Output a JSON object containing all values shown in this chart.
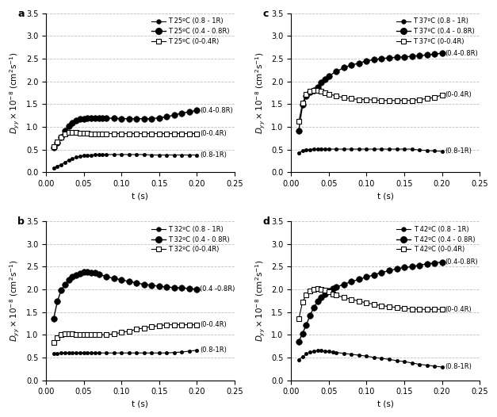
{
  "panels": [
    {
      "label": "a",
      "legend_entries": [
        "T 25ºC (0.8 - 1R)",
        "T 25ºC (0.4 - 0.8R)",
        "T 25ºC (0-0.4R)"
      ],
      "series": {
        "outer": {
          "t": [
            0.01,
            0.015,
            0.02,
            0.025,
            0.03,
            0.035,
            0.04,
            0.045,
            0.05,
            0.055,
            0.06,
            0.065,
            0.07,
            0.075,
            0.08,
            0.09,
            0.1,
            0.11,
            0.12,
            0.13,
            0.14,
            0.15,
            0.16,
            0.17,
            0.18,
            0.19,
            0.2
          ],
          "y": [
            0.1,
            0.13,
            0.17,
            0.22,
            0.27,
            0.3,
            0.33,
            0.35,
            0.37,
            0.38,
            0.38,
            0.39,
            0.39,
            0.39,
            0.39,
            0.39,
            0.39,
            0.39,
            0.39,
            0.39,
            0.38,
            0.38,
            0.38,
            0.38,
            0.38,
            0.38,
            0.38
          ]
        },
        "mid": {
          "t": [
            0.01,
            0.015,
            0.02,
            0.025,
            0.03,
            0.035,
            0.04,
            0.045,
            0.05,
            0.055,
            0.06,
            0.065,
            0.07,
            0.075,
            0.08,
            0.09,
            0.1,
            0.11,
            0.12,
            0.13,
            0.14,
            0.15,
            0.16,
            0.17,
            0.18,
            0.19,
            0.2
          ],
          "y": [
            0.55,
            0.65,
            0.78,
            0.92,
            1.02,
            1.08,
            1.14,
            1.17,
            1.18,
            1.19,
            1.2,
            1.2,
            1.2,
            1.2,
            1.19,
            1.19,
            1.18,
            1.18,
            1.18,
            1.18,
            1.18,
            1.2,
            1.22,
            1.26,
            1.3,
            1.33,
            1.36
          ]
        },
        "inner": {
          "t": [
            0.01,
            0.015,
            0.02,
            0.025,
            0.03,
            0.035,
            0.04,
            0.045,
            0.05,
            0.055,
            0.06,
            0.065,
            0.07,
            0.075,
            0.08,
            0.09,
            0.1,
            0.11,
            0.12,
            0.13,
            0.14,
            0.15,
            0.16,
            0.17,
            0.18,
            0.19,
            0.2
          ],
          "y": [
            0.56,
            0.66,
            0.78,
            0.85,
            0.88,
            0.88,
            0.87,
            0.86,
            0.86,
            0.86,
            0.85,
            0.85,
            0.85,
            0.85,
            0.85,
            0.85,
            0.85,
            0.85,
            0.85,
            0.85,
            0.85,
            0.85,
            0.85,
            0.85,
            0.85,
            0.85,
            0.85
          ]
        },
        "annot_outer": "(0.8-1R)",
        "annot_mid": "(0.4-0.8R)",
        "annot_inner": "(0-0.4R)"
      }
    },
    {
      "label": "b",
      "legend_entries": [
        "T 32ºC (0.8 - 1R)",
        "T 32ºC (0.4 - 0.8R)",
        "T 32ºC (0-0.4R)"
      ],
      "series": {
        "outer": {
          "t": [
            0.01,
            0.015,
            0.02,
            0.025,
            0.03,
            0.035,
            0.04,
            0.045,
            0.05,
            0.055,
            0.06,
            0.065,
            0.07,
            0.08,
            0.09,
            0.1,
            0.11,
            0.12,
            0.13,
            0.14,
            0.15,
            0.16,
            0.17,
            0.18,
            0.19,
            0.2
          ],
          "y": [
            0.58,
            0.59,
            0.6,
            0.6,
            0.6,
            0.6,
            0.6,
            0.6,
            0.6,
            0.6,
            0.6,
            0.6,
            0.6,
            0.6,
            0.6,
            0.6,
            0.6,
            0.6,
            0.6,
            0.6,
            0.6,
            0.6,
            0.61,
            0.62,
            0.64,
            0.66
          ]
        },
        "mid": {
          "t": [
            0.01,
            0.015,
            0.02,
            0.025,
            0.03,
            0.035,
            0.04,
            0.045,
            0.05,
            0.055,
            0.06,
            0.065,
            0.07,
            0.08,
            0.09,
            0.1,
            0.11,
            0.12,
            0.13,
            0.14,
            0.15,
            0.16,
            0.17,
            0.18,
            0.19,
            0.2
          ],
          "y": [
            1.35,
            1.73,
            1.98,
            2.1,
            2.2,
            2.27,
            2.32,
            2.35,
            2.38,
            2.38,
            2.37,
            2.36,
            2.33,
            2.28,
            2.24,
            2.21,
            2.17,
            2.14,
            2.11,
            2.09,
            2.07,
            2.05,
            2.04,
            2.03,
            2.02,
            2.0
          ]
        },
        "inner": {
          "t": [
            0.01,
            0.015,
            0.02,
            0.025,
            0.03,
            0.035,
            0.04,
            0.045,
            0.05,
            0.055,
            0.06,
            0.065,
            0.07,
            0.08,
            0.09,
            0.1,
            0.11,
            0.12,
            0.13,
            0.14,
            0.15,
            0.16,
            0.17,
            0.18,
            0.19,
            0.2
          ],
          "y": [
            0.83,
            0.93,
            1.0,
            1.03,
            1.03,
            1.02,
            1.01,
            1.0,
            1.0,
            1.0,
            1.0,
            1.0,
            1.0,
            1.0,
            1.02,
            1.05,
            1.08,
            1.12,
            1.15,
            1.18,
            1.2,
            1.22,
            1.22,
            1.22,
            1.22,
            1.22
          ]
        },
        "annot_outer": "(0.8-1R)",
        "annot_mid": "(0.4 -0.8R)",
        "annot_inner": "(0-0.4R)"
      }
    },
    {
      "label": "c",
      "legend_entries": [
        "T 37ºC (0.8 - 1R)",
        "T 37ºC (0.4 - 0.8R)",
        "T 37ºC (0-0.4R)"
      ],
      "series": {
        "outer": {
          "t": [
            0.01,
            0.015,
            0.02,
            0.025,
            0.03,
            0.035,
            0.04,
            0.045,
            0.05,
            0.06,
            0.07,
            0.08,
            0.09,
            0.1,
            0.11,
            0.12,
            0.13,
            0.14,
            0.15,
            0.16,
            0.17,
            0.18,
            0.19,
            0.2
          ],
          "y": [
            0.43,
            0.47,
            0.49,
            0.5,
            0.51,
            0.51,
            0.51,
            0.51,
            0.51,
            0.51,
            0.51,
            0.51,
            0.51,
            0.51,
            0.51,
            0.51,
            0.51,
            0.51,
            0.51,
            0.51,
            0.49,
            0.48,
            0.47,
            0.46
          ]
        },
        "mid": {
          "t": [
            0.01,
            0.015,
            0.02,
            0.025,
            0.03,
            0.035,
            0.04,
            0.045,
            0.05,
            0.06,
            0.07,
            0.08,
            0.09,
            0.1,
            0.11,
            0.12,
            0.13,
            0.14,
            0.15,
            0.16,
            0.17,
            0.18,
            0.19,
            0.2
          ],
          "y": [
            0.92,
            1.48,
            1.68,
            1.76,
            1.8,
            1.88,
            1.97,
            2.05,
            2.12,
            2.22,
            2.3,
            2.36,
            2.4,
            2.45,
            2.48,
            2.5,
            2.52,
            2.53,
            2.54,
            2.55,
            2.57,
            2.58,
            2.6,
            2.62
          ]
        },
        "inner": {
          "t": [
            0.01,
            0.015,
            0.02,
            0.025,
            0.03,
            0.035,
            0.04,
            0.045,
            0.05,
            0.06,
            0.07,
            0.08,
            0.09,
            0.1,
            0.11,
            0.12,
            0.13,
            0.14,
            0.15,
            0.16,
            0.17,
            0.18,
            0.19,
            0.2
          ],
          "y": [
            1.12,
            1.52,
            1.72,
            1.78,
            1.8,
            1.8,
            1.78,
            1.75,
            1.72,
            1.68,
            1.64,
            1.62,
            1.6,
            1.6,
            1.59,
            1.58,
            1.58,
            1.58,
            1.58,
            1.58,
            1.6,
            1.62,
            1.65,
            1.7
          ]
        },
        "annot_outer": "(0.8-1R)",
        "annot_mid": "(0.4-0.8R)",
        "annot_inner": "(0-0.4R)"
      }
    },
    {
      "label": "d",
      "legend_entries": [
        "T 42ºC (0.8 - 1R)",
        "T 42ºC (0.4 - 0.8R)",
        "T 42ºC (0-0.4R)"
      ],
      "series": {
        "outer": {
          "t": [
            0.01,
            0.015,
            0.02,
            0.025,
            0.03,
            0.035,
            0.04,
            0.045,
            0.05,
            0.055,
            0.06,
            0.07,
            0.08,
            0.09,
            0.1,
            0.11,
            0.12,
            0.13,
            0.14,
            0.15,
            0.16,
            0.17,
            0.18,
            0.19,
            0.2
          ],
          "y": [
            0.45,
            0.52,
            0.58,
            0.62,
            0.64,
            0.65,
            0.65,
            0.64,
            0.63,
            0.62,
            0.61,
            0.59,
            0.57,
            0.55,
            0.53,
            0.5,
            0.48,
            0.46,
            0.43,
            0.41,
            0.38,
            0.35,
            0.33,
            0.31,
            0.29
          ]
        },
        "mid": {
          "t": [
            0.01,
            0.015,
            0.02,
            0.025,
            0.03,
            0.035,
            0.04,
            0.045,
            0.05,
            0.055,
            0.06,
            0.07,
            0.08,
            0.09,
            0.1,
            0.11,
            0.12,
            0.13,
            0.14,
            0.15,
            0.16,
            0.17,
            0.18,
            0.19,
            0.2
          ],
          "y": [
            0.85,
            1.03,
            1.22,
            1.43,
            1.6,
            1.73,
            1.82,
            1.9,
            1.96,
            2.01,
            2.05,
            2.11,
            2.17,
            2.22,
            2.27,
            2.32,
            2.37,
            2.41,
            2.45,
            2.48,
            2.5,
            2.53,
            2.56,
            2.58,
            2.6
          ]
        },
        "inner": {
          "t": [
            0.01,
            0.015,
            0.02,
            0.025,
            0.03,
            0.035,
            0.04,
            0.045,
            0.05,
            0.055,
            0.06,
            0.07,
            0.08,
            0.09,
            0.1,
            0.11,
            0.12,
            0.13,
            0.14,
            0.15,
            0.16,
            0.17,
            0.18,
            0.19,
            0.2
          ],
          "y": [
            1.35,
            1.72,
            1.88,
            1.97,
            2.0,
            2.01,
            2.0,
            1.98,
            1.95,
            1.9,
            1.87,
            1.82,
            1.78,
            1.74,
            1.7,
            1.67,
            1.64,
            1.62,
            1.6,
            1.58,
            1.57,
            1.56,
            1.56,
            1.56,
            1.56
          ]
        },
        "annot_outer": "(0.8-1R)",
        "annot_mid": "(0.4-0.8R)",
        "annot_inner": "(0-0.4R)"
      }
    }
  ],
  "ylabel": "$D_{yy}\\times10^{-8}$ (cm$^{2}$s$^{-1}$)",
  "xlabel": "t (s)",
  "ylim": [
    0,
    3.5
  ],
  "xlim": [
    0,
    0.25
  ],
  "yticks": [
    0,
    0.5,
    1.0,
    1.5,
    2.0,
    2.5,
    3.0,
    3.5
  ],
  "xticks": [
    0,
    0.05,
    0.1,
    0.15,
    0.2,
    0.25
  ],
  "grid_color": "#b0b0b0",
  "fontsize_label": 7.5,
  "fontsize_tick": 7,
  "fontsize_annot": 6,
  "fontsize_legend": 6,
  "fontsize_panel": 9
}
